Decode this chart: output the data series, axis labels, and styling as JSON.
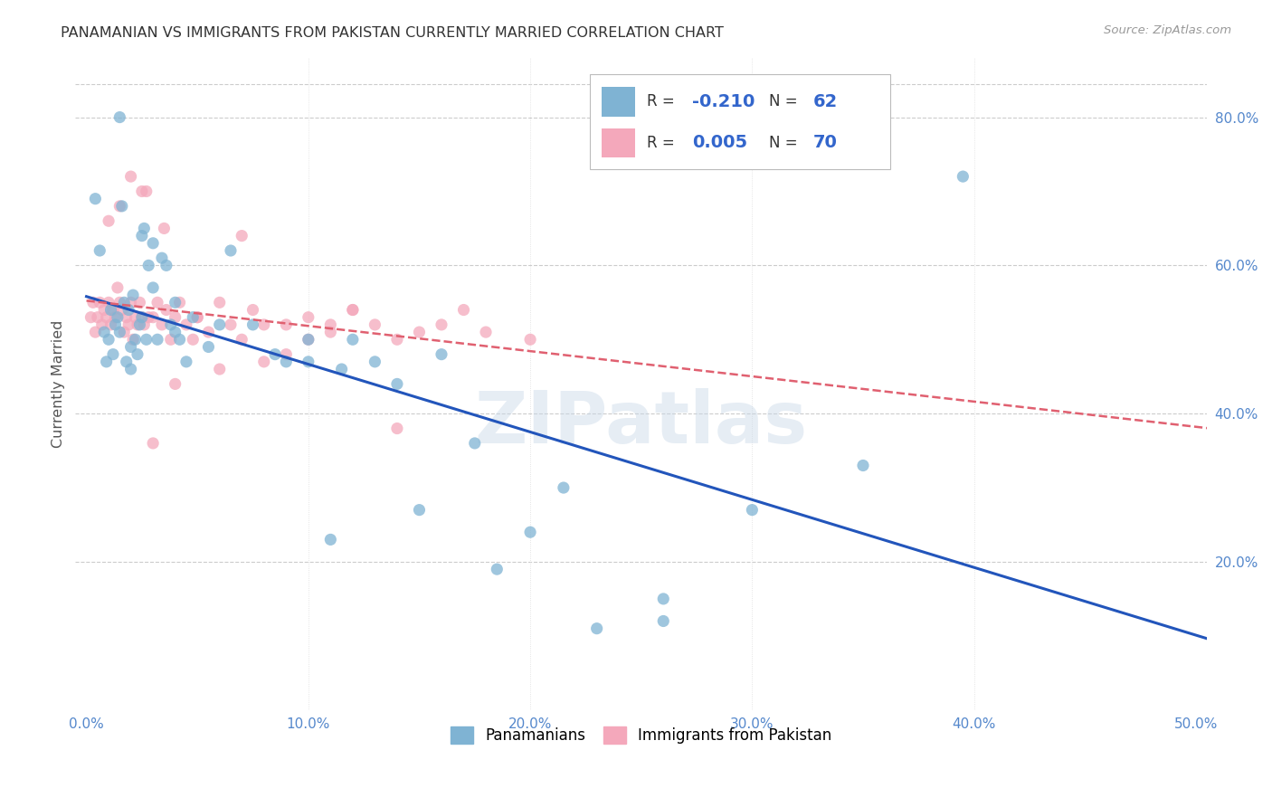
{
  "title": "PANAMANIAN VS IMMIGRANTS FROM PAKISTAN CURRENTLY MARRIED CORRELATION CHART",
  "source": "Source: ZipAtlas.com",
  "ylabel": "Currently Married",
  "xlim": [
    -0.005,
    0.505
  ],
  "ylim": [
    0.0,
    0.88
  ],
  "xtick_vals": [
    0.0,
    0.1,
    0.2,
    0.3,
    0.4,
    0.5
  ],
  "ytick_vals": [
    0.2,
    0.4,
    0.6,
    0.8
  ],
  "panamanian_color": "#7fb3d3",
  "pakistan_color": "#f4a8bb",
  "blue_line_color": "#2255bb",
  "pink_line_color": "#e06070",
  "legend_blue_color": "#3366cc",
  "tick_color": "#5588cc",
  "watermark_text": "ZIPatlas",
  "background_color": "#ffffff",
  "panamanian_x": [
    0.004,
    0.006,
    0.008,
    0.009,
    0.01,
    0.011,
    0.012,
    0.013,
    0.014,
    0.015,
    0.016,
    0.017,
    0.018,
    0.019,
    0.02,
    0.021,
    0.022,
    0.023,
    0.024,
    0.025,
    0.026,
    0.027,
    0.028,
    0.03,
    0.032,
    0.034,
    0.036,
    0.038,
    0.04,
    0.042,
    0.045,
    0.048,
    0.055,
    0.06,
    0.065,
    0.075,
    0.085,
    0.09,
    0.1,
    0.11,
    0.115,
    0.12,
    0.13,
    0.14,
    0.15,
    0.16,
    0.175,
    0.185,
    0.2,
    0.215,
    0.23,
    0.26,
    0.1,
    0.3,
    0.35,
    0.395,
    0.015,
    0.02,
    0.025,
    0.03,
    0.04,
    0.26
  ],
  "panamanian_y": [
    0.69,
    0.62,
    0.51,
    0.47,
    0.5,
    0.54,
    0.48,
    0.52,
    0.53,
    0.51,
    0.68,
    0.55,
    0.47,
    0.54,
    0.49,
    0.56,
    0.5,
    0.48,
    0.52,
    0.53,
    0.65,
    0.5,
    0.6,
    0.63,
    0.5,
    0.61,
    0.6,
    0.52,
    0.51,
    0.5,
    0.47,
    0.53,
    0.49,
    0.52,
    0.62,
    0.52,
    0.48,
    0.47,
    0.5,
    0.23,
    0.46,
    0.5,
    0.47,
    0.44,
    0.27,
    0.48,
    0.36,
    0.19,
    0.24,
    0.3,
    0.11,
    0.12,
    0.47,
    0.27,
    0.33,
    0.72,
    0.8,
    0.46,
    0.64,
    0.57,
    0.55,
    0.15
  ],
  "pakistan_x": [
    0.002,
    0.003,
    0.004,
    0.005,
    0.006,
    0.007,
    0.008,
    0.009,
    0.01,
    0.011,
    0.012,
    0.013,
    0.014,
    0.015,
    0.016,
    0.017,
    0.018,
    0.019,
    0.02,
    0.021,
    0.022,
    0.023,
    0.024,
    0.025,
    0.026,
    0.027,
    0.028,
    0.03,
    0.032,
    0.034,
    0.036,
    0.038,
    0.04,
    0.042,
    0.045,
    0.048,
    0.05,
    0.055,
    0.06,
    0.065,
    0.07,
    0.075,
    0.08,
    0.09,
    0.1,
    0.11,
    0.12,
    0.13,
    0.14,
    0.15,
    0.16,
    0.17,
    0.18,
    0.2,
    0.01,
    0.015,
    0.02,
    0.025,
    0.03,
    0.035,
    0.04,
    0.05,
    0.06,
    0.08,
    0.1,
    0.12,
    0.14,
    0.07,
    0.09,
    0.11
  ],
  "pakistan_y": [
    0.53,
    0.55,
    0.51,
    0.53,
    0.55,
    0.52,
    0.54,
    0.53,
    0.55,
    0.52,
    0.54,
    0.53,
    0.57,
    0.55,
    0.54,
    0.51,
    0.53,
    0.52,
    0.55,
    0.5,
    0.53,
    0.52,
    0.55,
    0.53,
    0.52,
    0.7,
    0.53,
    0.53,
    0.55,
    0.52,
    0.54,
    0.5,
    0.53,
    0.55,
    0.52,
    0.5,
    0.53,
    0.51,
    0.55,
    0.52,
    0.5,
    0.54,
    0.52,
    0.52,
    0.53,
    0.51,
    0.54,
    0.52,
    0.5,
    0.51,
    0.52,
    0.54,
    0.51,
    0.5,
    0.66,
    0.68,
    0.72,
    0.7,
    0.36,
    0.65,
    0.44,
    0.53,
    0.46,
    0.47,
    0.5,
    0.54,
    0.38,
    0.64,
    0.48,
    0.52
  ]
}
